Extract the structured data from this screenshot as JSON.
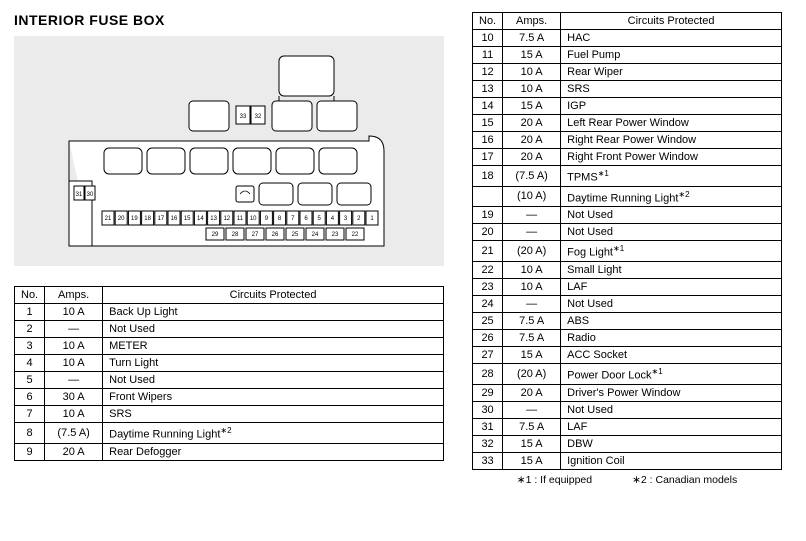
{
  "title": "INTERIOR FUSE BOX",
  "table_headers": {
    "no": "No.",
    "amps": "Amps.",
    "circuits": "Circuits Protected"
  },
  "left_table": {
    "rows": [
      {
        "no": "1",
        "amps": "10 A",
        "circ": "Back Up Light"
      },
      {
        "no": "2",
        "amps": "—",
        "circ": "Not Used"
      },
      {
        "no": "3",
        "amps": "10 A",
        "circ": "METER"
      },
      {
        "no": "4",
        "amps": "10 A",
        "circ": "Turn Light"
      },
      {
        "no": "5",
        "amps": "—",
        "circ": "Not Used"
      },
      {
        "no": "6",
        "amps": "30 A",
        "circ": "Front Wipers"
      },
      {
        "no": "7",
        "amps": "10 A",
        "circ": "SRS"
      },
      {
        "no": "8",
        "amps": "(7.5 A)",
        "circ": "Daytime Running Light",
        "sup": "*2"
      },
      {
        "no": "9",
        "amps": "20 A",
        "circ": "Rear Defogger"
      }
    ]
  },
  "right_table": {
    "rows": [
      {
        "no": "10",
        "amps": "7.5 A",
        "circ": "HAC"
      },
      {
        "no": "11",
        "amps": "15 A",
        "circ": "Fuel Pump"
      },
      {
        "no": "12",
        "amps": "10 A",
        "circ": "Rear Wiper"
      },
      {
        "no": "13",
        "amps": "10 A",
        "circ": "SRS"
      },
      {
        "no": "14",
        "amps": "15 A",
        "circ": "IGP"
      },
      {
        "no": "15",
        "amps": "20 A",
        "circ": "Left Rear Power Window"
      },
      {
        "no": "16",
        "amps": "20 A",
        "circ": "Right Rear Power Window"
      },
      {
        "no": "17",
        "amps": "20 A",
        "circ": "Right Front Power Window"
      },
      {
        "no": "18",
        "amps": "(7.5 A)",
        "circ": "TPMS",
        "sup": "*1"
      },
      {
        "no": "",
        "amps": "(10 A)",
        "circ": "Daytime Running Light",
        "sup": "*2"
      },
      {
        "no": "19",
        "amps": "—",
        "circ": "Not Used"
      },
      {
        "no": "20",
        "amps": "—",
        "circ": "Not Used"
      },
      {
        "no": "21",
        "amps": "(20 A)",
        "circ": "Fog Light",
        "sup": "*1"
      },
      {
        "no": "22",
        "amps": "10 A",
        "circ": "Small Light"
      },
      {
        "no": "23",
        "amps": "10 A",
        "circ": "LAF"
      },
      {
        "no": "24",
        "amps": "—",
        "circ": "Not Used"
      },
      {
        "no": "25",
        "amps": "7.5 A",
        "circ": "ABS"
      },
      {
        "no": "26",
        "amps": "7.5 A",
        "circ": "Radio"
      },
      {
        "no": "27",
        "amps": "15 A",
        "circ": "ACC Socket"
      },
      {
        "no": "28",
        "amps": "(20 A)",
        "circ": "Power Door Lock",
        "sup": "*1"
      },
      {
        "no": "29",
        "amps": "20 A",
        "circ": "Driver's Power Window"
      },
      {
        "no": "30",
        "amps": "—",
        "circ": "Not Used"
      },
      {
        "no": "31",
        "amps": "7.5 A",
        "circ": "LAF"
      },
      {
        "no": "32",
        "amps": "15 A",
        "circ": "DBW"
      },
      {
        "no": "33",
        "amps": "15 A",
        "circ": "Ignition Coil"
      }
    ]
  },
  "footnotes": {
    "f1": "∗1 : If equipped",
    "f2": "∗2 : Canadian models"
  },
  "diagram": {
    "bg": "#ebebeb",
    "stroke": "#000000",
    "fill": "#ffffff",
    "row_top_labels": [
      "21",
      "20",
      "19",
      "18",
      "17",
      "16",
      "15",
      "14",
      "13",
      "12",
      "11",
      "10",
      "9",
      "8",
      "7",
      "6",
      "5",
      "4",
      "3",
      "2",
      "1"
    ],
    "row_bot_labels": [
      "29",
      "28",
      "27",
      "26",
      "25",
      "24",
      "23",
      "22"
    ],
    "small_left": [
      "31",
      "30"
    ],
    "small_mid": [
      "33",
      "32"
    ]
  }
}
